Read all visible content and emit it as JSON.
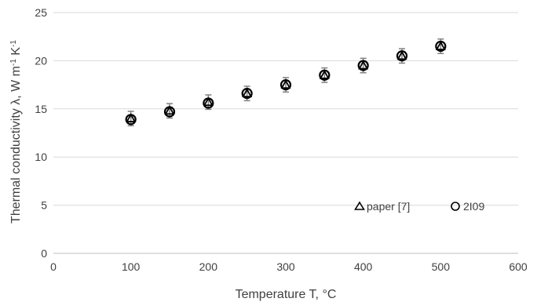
{
  "chart_data": {
    "type": "scatter",
    "xlabel": "Temperature T, °C",
    "ylabel_main": "Thermal conductivity λ, W m",
    "ylabel_sup1": "-1",
    "ylabel_mid": " K",
    "ylabel_sup2": "-1",
    "xlim": [
      0,
      600
    ],
    "ylim": [
      0,
      25
    ],
    "x_ticks": [
      0,
      100,
      200,
      300,
      400,
      500,
      600
    ],
    "y_ticks": [
      0,
      5,
      10,
      15,
      20,
      25
    ],
    "grid": "horizontal",
    "legend_position": "lower-right",
    "error_bar": 0.75,
    "series": [
      {
        "name": "paper [7]",
        "marker": "triangle",
        "x": [
          100,
          150,
          200,
          250,
          300,
          350,
          400,
          450,
          500
        ],
        "y": [
          14.0,
          14.8,
          15.7,
          16.6,
          17.5,
          18.5,
          19.5,
          20.5,
          21.5
        ]
      },
      {
        "name": "2I09",
        "marker": "circle",
        "x": [
          100,
          150,
          200,
          250,
          300,
          350,
          400,
          450,
          500
        ],
        "y": [
          13.9,
          14.7,
          15.6,
          16.6,
          17.5,
          18.5,
          19.5,
          20.5,
          21.5
        ]
      }
    ],
    "colors": {
      "marker": "#000000",
      "error_bar": "#808080",
      "grid": "#d9d9d9",
      "text": "#404040"
    }
  }
}
